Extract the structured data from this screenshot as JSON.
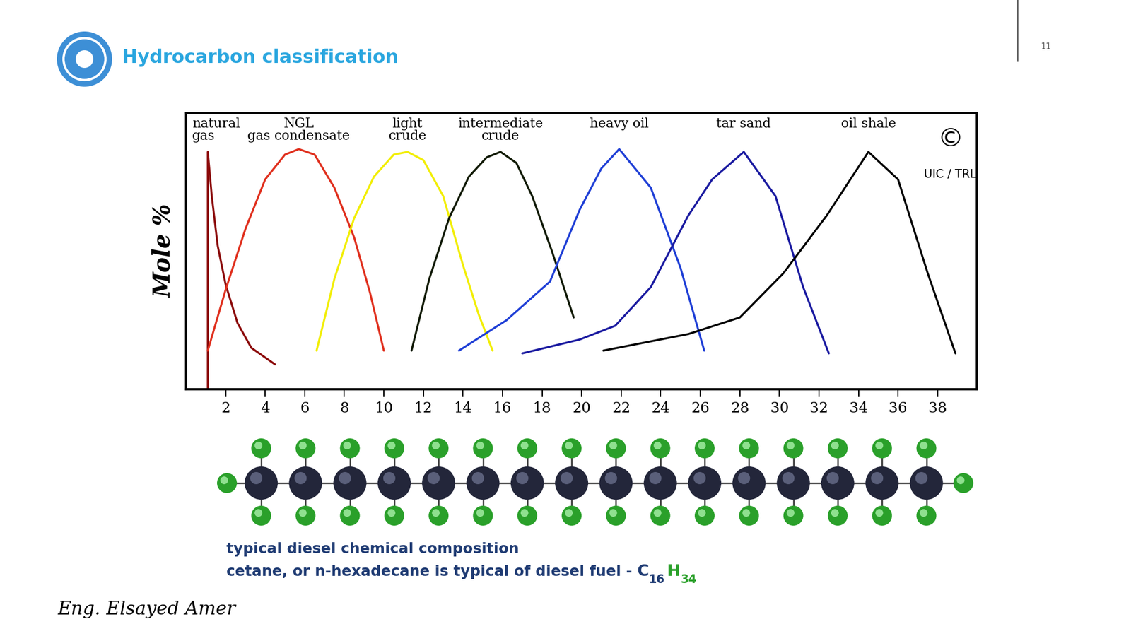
{
  "slide": {
    "title": "Hydrocarbon classification",
    "page_number": 11,
    "author": "Eng. Elsayed Amer"
  },
  "chart_data": {
    "type": "line",
    "y_label": "Mole %",
    "xlim": [
      0,
      40
    ],
    "xticks": [
      2,
      4,
      6,
      8,
      10,
      12,
      14,
      16,
      18,
      20,
      22,
      24,
      26,
      28,
      30,
      32,
      34,
      36,
      38
    ],
    "ylim": [
      0,
      100
    ],
    "yticks": [],
    "tick_labels": "x",
    "annotations": [
      "©",
      "UIC / TRL"
    ],
    "series": [
      {
        "name": "natural\ngas",
        "color": "#8b0a0a",
        "x": [
          1.1,
          1.1,
          1.3,
          1.6,
          2.0,
          2.6,
          3.3,
          4.5
        ],
        "values": [
          0,
          86,
          70,
          52,
          38,
          24,
          15,
          9
        ]
      },
      {
        "name": "NGL\ngas condensate",
        "color": "#e0301e",
        "x": [
          1.1,
          2.0,
          3.0,
          4.0,
          5.0,
          5.7,
          6.5,
          7.5,
          8.5,
          9.3,
          10.0
        ],
        "values": [
          14,
          36,
          58,
          76,
          85,
          87,
          85,
          73,
          55,
          35,
          14
        ]
      },
      {
        "name": "light\ncrude",
        "color": "#f2ee00",
        "x": [
          6.6,
          7.5,
          8.5,
          9.5,
          10.5,
          11.2,
          12.0,
          13.0,
          14.0,
          14.8,
          15.5
        ],
        "values": [
          14,
          40,
          62,
          77,
          85,
          86,
          83,
          70,
          45,
          27,
          14
        ]
      },
      {
        "name": "intermediate\ncrude",
        "color": "#111a05",
        "x": [
          11.4,
          12.3,
          13.3,
          14.3,
          15.2,
          15.9,
          16.7,
          17.5,
          18.5,
          19.6
        ],
        "values": [
          14,
          40,
          62,
          77,
          84,
          86,
          82,
          70,
          50,
          26
        ]
      },
      {
        "name": "heavy oil",
        "color": "#1f3fd6",
        "x": [
          13.8,
          16.2,
          18.4,
          19.9,
          21.0,
          21.9,
          23.5,
          25.0,
          26.2
        ],
        "values": [
          14,
          25,
          39,
          65,
          80,
          87,
          73,
          44,
          14
        ]
      },
      {
        "name": "tar sand",
        "color": "#1a1aa0",
        "x": [
          17.0,
          19.9,
          21.7,
          23.5,
          25.4,
          26.6,
          28.2,
          29.8,
          31.2,
          32.5
        ],
        "values": [
          13,
          18,
          23,
          37,
          63,
          76,
          86,
          70,
          37,
          13
        ]
      },
      {
        "name": "oil shale",
        "color": "#000000",
        "x": [
          21.1,
          25.4,
          28.0,
          30.2,
          32.4,
          34.5,
          36.0,
          37.5,
          38.9
        ],
        "values": [
          14,
          20,
          26,
          42,
          63,
          86,
          76,
          42,
          13
        ]
      }
    ]
  },
  "caption": {
    "lines": [
      "typical diesel chemical composition",
      "cetane, or n-hexadecane is typical of diesel fuel - "
    ],
    "formula": [
      {
        "element": "C",
        "count": 16,
        "color": "#1f3b73"
      },
      {
        "element": "H",
        "count": 34,
        "color": "#2aa02a"
      }
    ]
  }
}
